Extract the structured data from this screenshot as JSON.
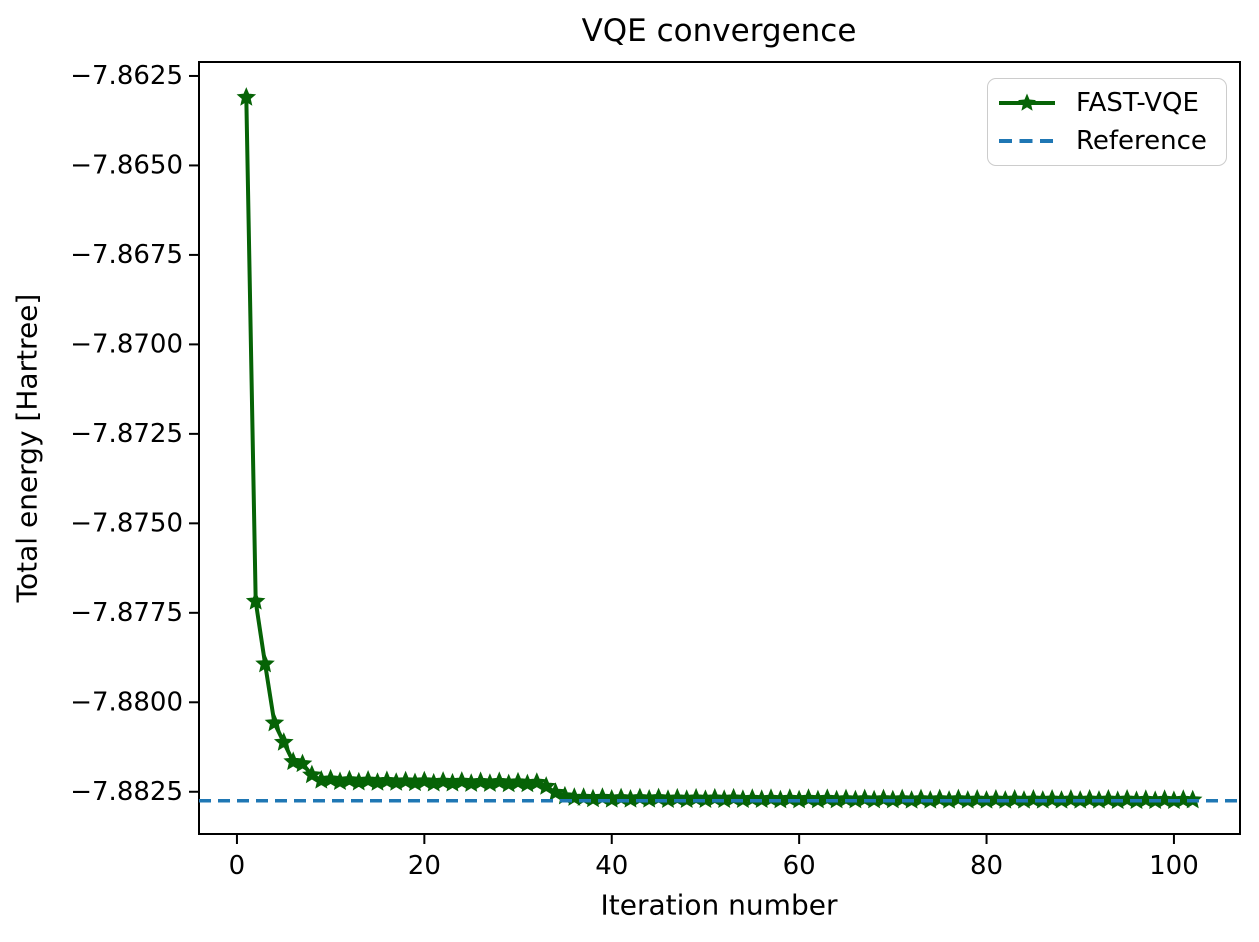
{
  "chart_data": {
    "type": "line",
    "title": "VQE convergence",
    "xlabel": "Iteration number",
    "ylabel": "Total energy [Hartree]",
    "grid": false,
    "legend_position": "upper right",
    "xlim": [
      -4.05,
      107.05
    ],
    "ylim": [
      -7.88368,
      -7.86211
    ],
    "x_ticks": {
      "values": [
        0,
        20,
        40,
        60,
        80,
        100
      ],
      "labels": [
        "0",
        "20",
        "40",
        "60",
        "80",
        "100"
      ]
    },
    "y_ticks": {
      "values": [
        -7.8625,
        -7.865,
        -7.8675,
        -7.87,
        -7.8725,
        -7.875,
        -7.8775,
        -7.88,
        -7.8825
      ],
      "labels": [
        "−7.8625",
        "−7.8650",
        "−7.8675",
        "−7.8700",
        "−7.8725",
        "−7.8750",
        "−7.8775",
        "−7.8800",
        "−7.8825"
      ]
    },
    "series": [
      {
        "name": "FAST-VQE",
        "style": "solid",
        "marker": "star",
        "color": "#066306",
        "x": [
          1,
          2,
          3,
          4,
          5,
          6,
          7,
          8,
          9,
          10,
          11,
          12,
          13,
          14,
          15,
          16,
          17,
          18,
          19,
          20,
          21,
          22,
          23,
          24,
          25,
          26,
          27,
          28,
          29,
          30,
          31,
          32,
          33,
          34,
          35,
          36,
          37,
          38,
          39,
          40,
          41,
          42,
          43,
          44,
          45,
          46,
          47,
          48,
          49,
          50,
          51,
          52,
          53,
          54,
          55,
          56,
          57,
          58,
          59,
          60,
          61,
          62,
          63,
          64,
          65,
          66,
          67,
          68,
          69,
          70,
          71,
          72,
          73,
          74,
          75,
          76,
          77,
          78,
          79,
          80,
          81,
          82,
          83,
          84,
          85,
          86,
          87,
          88,
          89,
          90,
          91,
          92,
          93,
          94,
          95,
          96,
          97,
          98,
          99,
          100,
          101,
          102
        ],
        "values": [
          -7.8631,
          -7.87718,
          -7.87893,
          -7.88058,
          -7.88112,
          -7.88166,
          -7.88172,
          -7.88203,
          -7.88218,
          -7.88215,
          -7.88222,
          -7.88217,
          -7.88223,
          -7.88218,
          -7.88224,
          -7.88219,
          -7.88224,
          -7.8822,
          -7.88225,
          -7.8822,
          -7.88226,
          -7.88221,
          -7.88226,
          -7.88221,
          -7.88227,
          -7.88222,
          -7.88227,
          -7.88222,
          -7.88228,
          -7.88223,
          -7.88228,
          -7.88224,
          -7.88235,
          -7.88252,
          -7.88262,
          -7.88266,
          -7.88266,
          -7.8827,
          -7.88266,
          -7.88271,
          -7.88267,
          -7.88271,
          -7.88267,
          -7.88271,
          -7.88267,
          -7.88272,
          -7.88268,
          -7.88272,
          -7.88268,
          -7.88272,
          -7.88268,
          -7.88272,
          -7.88268,
          -7.88272,
          -7.88269,
          -7.88272,
          -7.88269,
          -7.88273,
          -7.88269,
          -7.88273,
          -7.88269,
          -7.88273,
          -7.88269,
          -7.88273,
          -7.8827,
          -7.88273,
          -7.8827,
          -7.88273,
          -7.8827,
          -7.88273,
          -7.8827,
          -7.88274,
          -7.8827,
          -7.88274,
          -7.8827,
          -7.88274,
          -7.8827,
          -7.88274,
          -7.88271,
          -7.88274,
          -7.88271,
          -7.88274,
          -7.88271,
          -7.88274,
          -7.88271,
          -7.88274,
          -7.88271,
          -7.88274,
          -7.88271,
          -7.88274,
          -7.88271,
          -7.88274,
          -7.88271,
          -7.88275,
          -7.88271,
          -7.88275,
          -7.88272,
          -7.88275,
          -7.88272,
          -7.88275,
          -7.88272,
          -7.88273
        ]
      },
      {
        "name": "Reference",
        "style": "dashed",
        "marker": "none",
        "color": "#1f77b4",
        "value": -7.88275
      }
    ],
    "colors": {
      "spine": "#000000",
      "tick_text": "#000000",
      "legend_border": "#cccccc",
      "background": "#ffffff"
    }
  }
}
